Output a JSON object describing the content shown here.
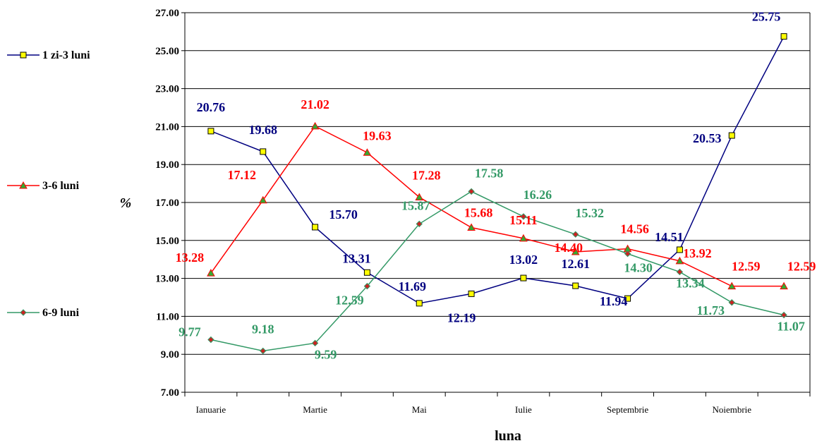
{
  "chart_data": {
    "type": "line",
    "x_ticks": [
      "Ianuarie",
      "",
      "Martie",
      "",
      "Mai",
      "",
      "Iulie",
      "",
      "Septembrie",
      "",
      "Noiembrie",
      ""
    ],
    "xlabel": "luna",
    "ylabel": "%",
    "ylim": [
      7,
      27
    ],
    "y_ticks": [
      "7.00",
      "9.00",
      "11.00",
      "13.00",
      "15.00",
      "17.00",
      "19.00",
      "21.00",
      "23.00",
      "25.00",
      "27.00"
    ],
    "grid": true,
    "legend_position": "left",
    "series": [
      {
        "name": "1 zi-3 luni",
        "color": "#000080",
        "marker": "square",
        "marker_fill": "#ffff00",
        "values": [
          20.76,
          19.68,
          15.7,
          13.31,
          11.69,
          12.19,
          13.02,
          12.61,
          11.94,
          14.51,
          20.53,
          25.75
        ],
        "labels": [
          "20.76",
          "19.68",
          "15.70",
          "13.31",
          "11.69",
          "12.19",
          "13.02",
          "12.61",
          "11.94",
          "14.51",
          "20.53",
          "25.75"
        ]
      },
      {
        "name": "3-6 luni",
        "color": "#ff0000",
        "marker": "triangle",
        "marker_fill": "#33aa33",
        "values": [
          13.28,
          17.12,
          21.02,
          19.63,
          17.28,
          15.68,
          15.11,
          14.4,
          14.56,
          13.92,
          12.59,
          12.59
        ],
        "labels": [
          "13.28",
          "17.12",
          "21.02",
          "19.63",
          "17.28",
          "15.68",
          "15.11",
          "14.40",
          "14.56",
          "13.92",
          "12.59",
          "12.59"
        ]
      },
      {
        "name": "6-9 luni",
        "color": "#339966",
        "marker": "diamond",
        "marker_fill": "#cc2222",
        "values": [
          9.77,
          9.18,
          9.59,
          12.59,
          15.87,
          17.58,
          16.26,
          15.32,
          14.3,
          13.34,
          11.73,
          11.07
        ],
        "labels": [
          "9.77",
          "9.18",
          "9.59",
          "12.59",
          "15.87",
          "17.58",
          "16.26",
          "15.32",
          "14.30",
          "13.34",
          "11.73",
          "11.07"
        ]
      }
    ]
  }
}
